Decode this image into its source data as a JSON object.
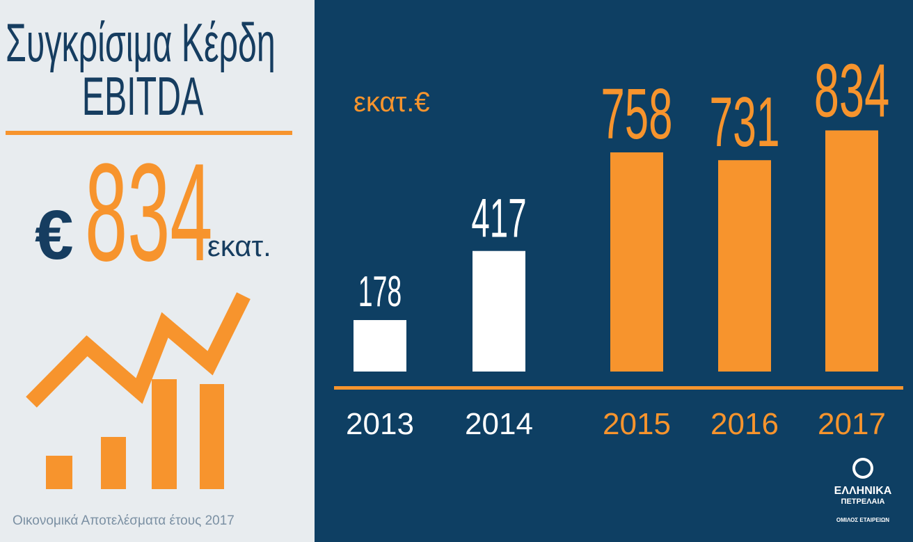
{
  "panel": {
    "title_lines": [
      "Συγκρίσιμα Κέρδη",
      "EBITDA"
    ],
    "currency": "€",
    "headline": 834,
    "unit": "εκατ.",
    "footer": "Οικονομικά Αποτελέσματα έτους 2017"
  },
  "logo": {
    "lines": [
      "ΕΛΛΗΝΙΚΑ",
      "ΠΕΤΡΕΛΑΙΑ",
      "ΟΜΙΛΟΣ ΕΤΑΙΡΕΙΩΝ"
    ]
  },
  "chart_data": {
    "type": "bar",
    "y_label": "εκατ.€",
    "categories": [
      "2013",
      "2014",
      "2015",
      "2016",
      "2017"
    ],
    "values": [
      178,
      417,
      758,
      731,
      834
    ],
    "colors": [
      "#ffffff",
      "#ffffff",
      "#f7942d",
      "#f7942d",
      "#f7942d"
    ],
    "ylim": [
      0,
      900
    ]
  }
}
